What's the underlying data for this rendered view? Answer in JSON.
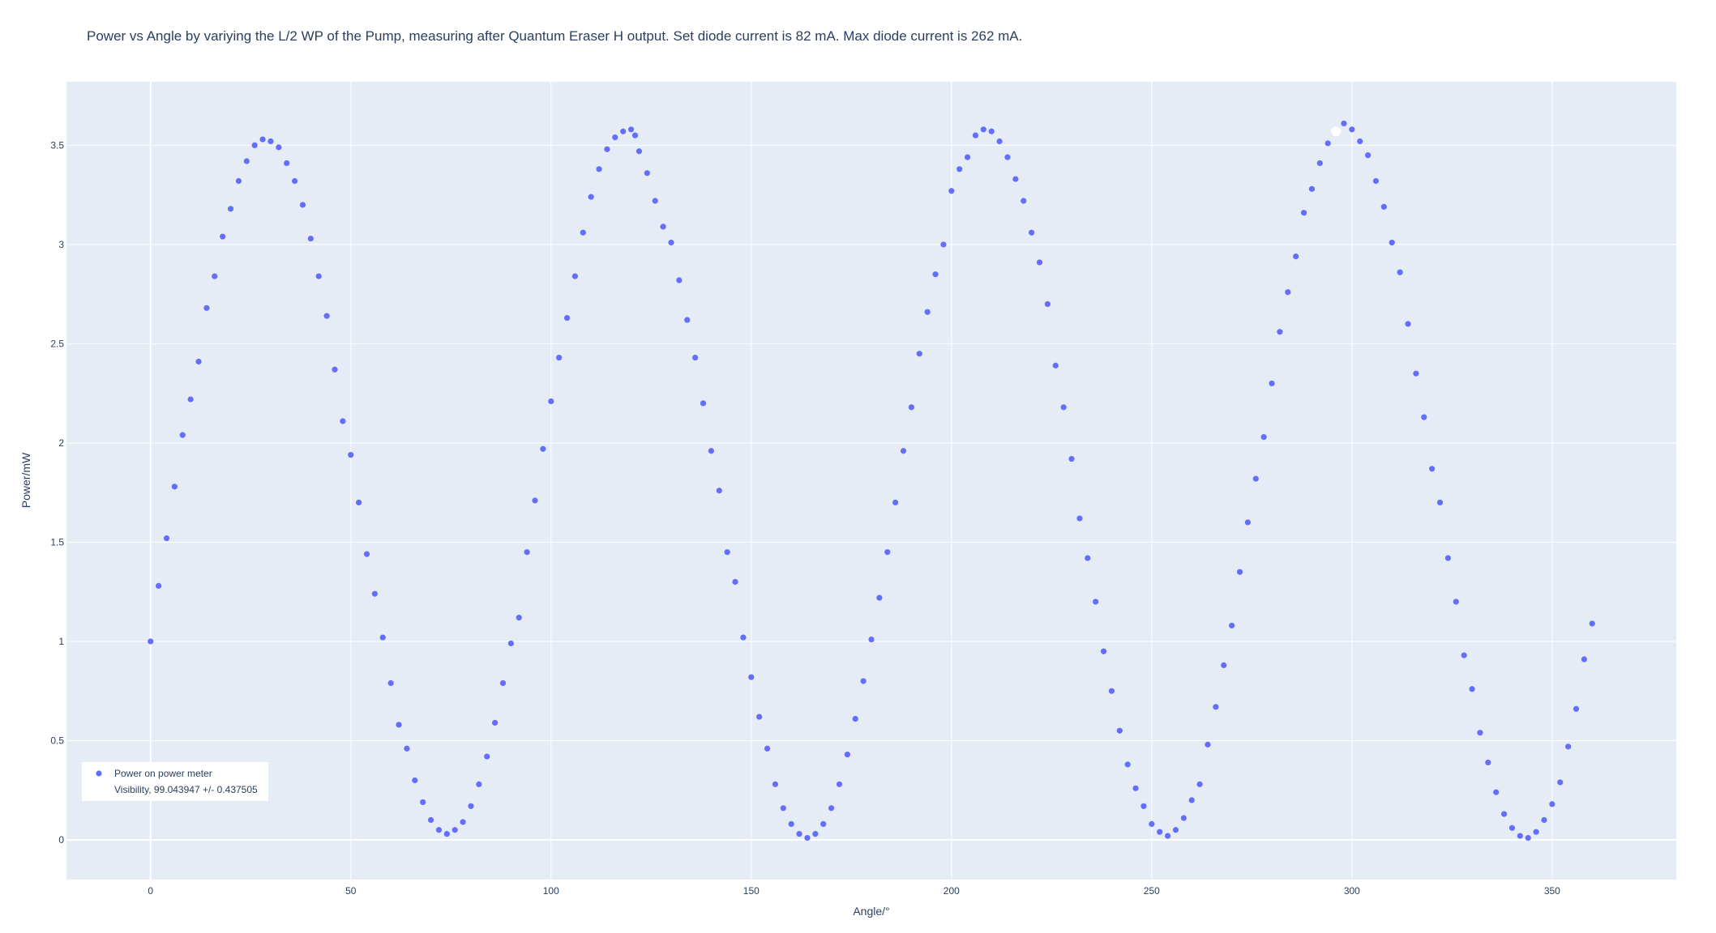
{
  "chart_data": {
    "type": "scatter",
    "title": "Power vs Angle by variying the L/2 WP of the Pump, measuring after Quantum Eraser H output. Set diode current is 82 mA. Max diode current is 262 mA.",
    "xlabel": "Angle/°",
    "ylabel": "Power/mW",
    "xlim": [
      -21,
      381
    ],
    "ylim": [
      -0.2,
      3.82
    ],
    "xticks": [
      0,
      50,
      100,
      150,
      200,
      250,
      300,
      350
    ],
    "yticks": [
      0,
      0.5,
      1,
      1.5,
      2,
      2.5,
      3,
      3.5
    ],
    "grid": true,
    "legend_position": "bottom-left",
    "colors": {
      "plot_bg": "#e5ecf6",
      "grid": "#ffffff",
      "marker": "#636efa",
      "text": "#2a3f5f"
    },
    "series": [
      {
        "name": "Power on power meter",
        "x": [
          0,
          2,
          4,
          6,
          8,
          10,
          12,
          14,
          16,
          18,
          20,
          22,
          24,
          26,
          28,
          30,
          32,
          34,
          36,
          38,
          40,
          42,
          44,
          46,
          48,
          50,
          52,
          54,
          56,
          58,
          60,
          62,
          64,
          66,
          68,
          70,
          72,
          74,
          76,
          78,
          80,
          82,
          84,
          86,
          88,
          90,
          92,
          94,
          96,
          98,
          100,
          102,
          104,
          106,
          108,
          110,
          112,
          114,
          116,
          118,
          120,
          121,
          122,
          124,
          126,
          128,
          130,
          132,
          134,
          136,
          138,
          140,
          142,
          144,
          146,
          148,
          150,
          152,
          154,
          156,
          158,
          160,
          162,
          164,
          166,
          168,
          170,
          172,
          174,
          176,
          178,
          180,
          182,
          184,
          186,
          188,
          190,
          192,
          194,
          196,
          198,
          200,
          202,
          204,
          206,
          208,
          210,
          212,
          214,
          216,
          218,
          220,
          222,
          224,
          226,
          228,
          230,
          232,
          234,
          236,
          238,
          240,
          242,
          244,
          246,
          248,
          250,
          252,
          254,
          256,
          258,
          260,
          262,
          264,
          266,
          268,
          270,
          272,
          274,
          276,
          278,
          280,
          282,
          284,
          286,
          288,
          290,
          292,
          294,
          296,
          298,
          300,
          302,
          304,
          306,
          308,
          310,
          312,
          314,
          316,
          318,
          320,
          322,
          324,
          326,
          328,
          330,
          332,
          334,
          336,
          338,
          340,
          342,
          344,
          346,
          348,
          350,
          352,
          354,
          356,
          358,
          360
        ],
        "y": [
          1.0,
          1.28,
          1.52,
          1.78,
          2.04,
          2.22,
          2.41,
          2.68,
          2.84,
          3.04,
          3.18,
          3.32,
          3.42,
          3.5,
          3.53,
          3.52,
          3.49,
          3.41,
          3.32,
          3.2,
          3.03,
          2.84,
          2.64,
          2.37,
          2.11,
          1.94,
          1.7,
          1.44,
          1.24,
          1.02,
          0.79,
          0.58,
          0.46,
          0.3,
          0.19,
          0.1,
          0.05,
          0.03,
          0.05,
          0.09,
          0.17,
          0.28,
          0.42,
          0.59,
          0.79,
          0.99,
          1.12,
          1.45,
          1.71,
          1.97,
          2.21,
          2.43,
          2.63,
          2.84,
          3.06,
          3.24,
          3.38,
          3.48,
          3.54,
          3.57,
          3.58,
          3.55,
          3.47,
          3.36,
          3.22,
          3.09,
          3.01,
          2.82,
          2.62,
          2.43,
          2.2,
          1.96,
          1.76,
          1.45,
          1.3,
          1.02,
          0.82,
          0.62,
          0.46,
          0.28,
          0.16,
          0.08,
          0.03,
          0.01,
          0.03,
          0.08,
          0.16,
          0.28,
          0.43,
          0.61,
          0.8,
          1.01,
          1.22,
          1.45,
          1.7,
          1.96,
          2.18,
          2.45,
          2.66,
          2.85,
          3.0,
          3.27,
          3.38,
          3.44,
          3.55,
          3.58,
          3.57,
          3.52,
          3.44,
          3.33,
          3.22,
          3.06,
          2.91,
          2.7,
          2.39,
          2.18,
          1.92,
          1.62,
          1.42,
          1.2,
          0.95,
          0.75,
          0.55,
          0.38,
          0.26,
          0.17,
          0.08,
          0.04,
          0.02,
          0.05,
          0.11,
          0.2,
          0.28,
          0.48,
          0.67,
          0.88,
          1.08,
          1.35,
          1.6,
          1.82,
          2.03,
          2.3,
          2.56,
          2.76,
          2.94,
          3.16,
          3.28,
          3.41,
          3.51,
          3.57,
          3.61,
          3.58,
          3.52,
          3.45,
          3.32,
          3.19,
          3.01,
          2.86,
          2.6,
          2.35,
          2.13,
          1.87,
          1.7,
          1.42,
          1.2,
          0.93,
          0.76,
          0.54,
          0.39,
          0.24,
          0.13,
          0.06,
          0.02,
          0.01,
          0.04,
          0.1,
          0.18,
          0.29,
          0.47,
          0.66,
          0.91,
          1.09
        ],
        "highlight_index": 149
      }
    ],
    "annotations": [
      {
        "text": "Visibility, 99.043947 +/- 0.437505"
      }
    ]
  }
}
